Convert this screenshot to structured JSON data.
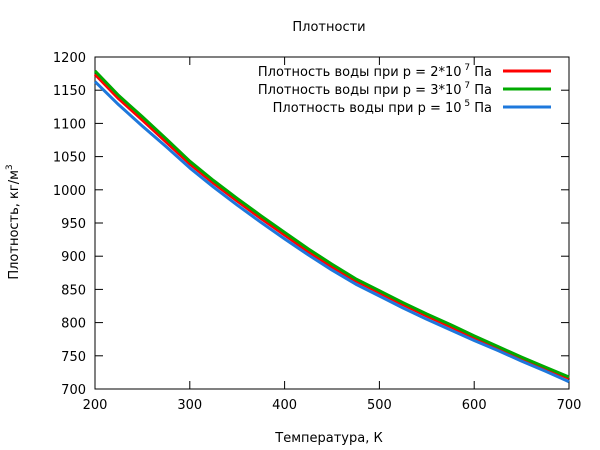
{
  "chart_data": {
    "type": "line",
    "title": "Плотности",
    "xlabel": "Температура, К",
    "ylabel": "Плотность, кг/м",
    "ylabel_sup": "3",
    "xlim": [
      200,
      700
    ],
    "ylim": [
      700,
      1200
    ],
    "xticks": [
      200,
      300,
      400,
      500,
      600,
      700
    ],
    "yticks": [
      700,
      750,
      800,
      850,
      900,
      950,
      1000,
      1050,
      1100,
      1150,
      1200
    ],
    "grid": false,
    "legend_position": "top-right",
    "series": [
      {
        "name": "Плотность воды при p = 2*10",
        "name_sup": "7",
        "name_suffix": " Па",
        "color": "#ff0000",
        "x": [
          200,
          225,
          250,
          275,
          300,
          325,
          350,
          375,
          400,
          425,
          450,
          475,
          500,
          525,
          550,
          575,
          600,
          625,
          650,
          675,
          700
        ],
        "y": [
          1174,
          1137,
          1105,
          1072,
          1039,
          1010,
          983,
          957,
          932,
          907,
          884,
          863,
          845,
          827,
          810,
          794,
          777,
          762,
          746,
          731,
          716
        ]
      },
      {
        "name": "Плотность воды при p = 3*10",
        "name_sup": "7",
        "name_suffix": " Па",
        "color": "#00aa00",
        "x": [
          200,
          225,
          250,
          275,
          300,
          325,
          350,
          375,
          400,
          425,
          450,
          475,
          500,
          525,
          550,
          575,
          600,
          625,
          650,
          675,
          700
        ],
        "y": [
          1179,
          1142,
          1110,
          1077,
          1043,
          1014,
          987,
          961,
          936,
          911,
          888,
          866,
          848,
          830,
          813,
          797,
          780,
          764,
          748,
          733,
          718
        ]
      },
      {
        "name": "Плотность воды при p = 10",
        "name_sup": "5",
        "name_suffix": " Па",
        "color": "#1e78dc",
        "x": [
          200,
          225,
          250,
          275,
          300,
          325,
          350,
          375,
          400,
          425,
          450,
          475,
          500,
          525,
          550,
          575,
          600,
          625,
          650,
          675,
          700
        ],
        "y": [
          1163,
          1128,
          1096,
          1065,
          1033,
          1004,
          977,
          951,
          926,
          902,
          879,
          858,
          840,
          822,
          805,
          789,
          773,
          758,
          742,
          727,
          711
        ]
      }
    ]
  }
}
